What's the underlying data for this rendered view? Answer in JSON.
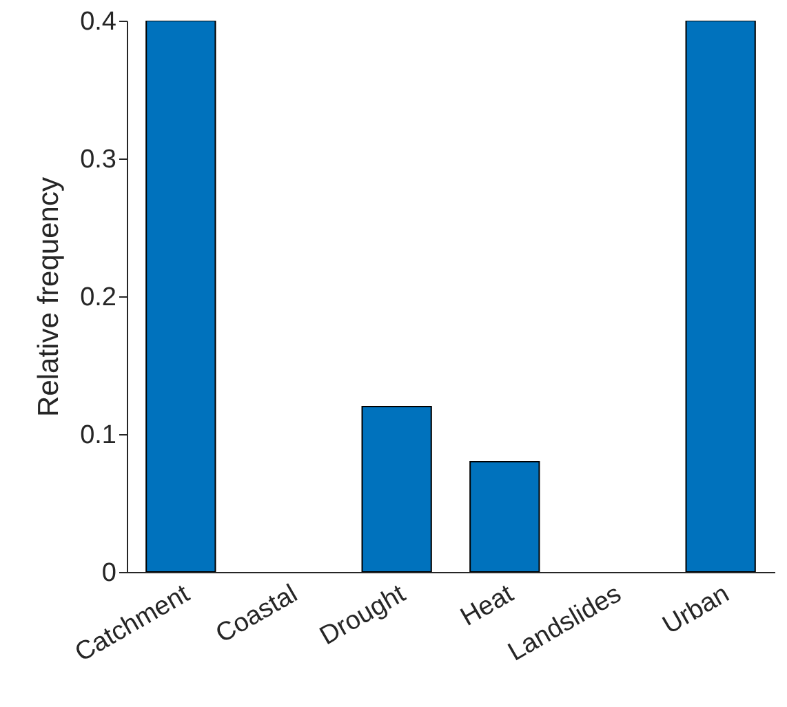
{
  "chart_data": {
    "type": "bar",
    "ylabel": "Relative frequency",
    "categories": [
      "Catchment",
      "Coastal",
      "Drought",
      "Heat",
      "Landslides",
      "Urban"
    ],
    "values": [
      0.4,
      0,
      0.12,
      0.08,
      0,
      0.4
    ],
    "color": "#0072bd",
    "ylim": [
      0,
      0.4
    ],
    "yticks": [
      0,
      0.1,
      0.2,
      0.3,
      0.4
    ],
    "grid": false
  }
}
